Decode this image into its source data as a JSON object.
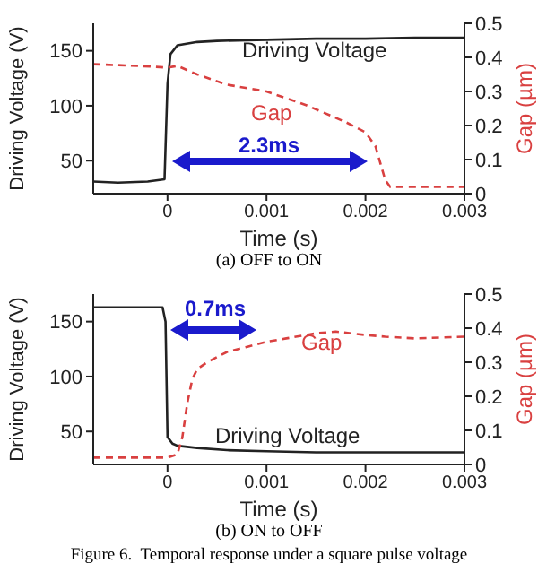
{
  "chart_data": [
    {
      "type": "line",
      "xlabel": "Time (s)",
      "ylabel": "Driving Voltage (V)",
      "y2label": "Gap (µm)",
      "xlim": [
        -0.00075,
        0.003
      ],
      "xticks": [
        0,
        0.001,
        0.002,
        0.003
      ],
      "ylim": [
        20,
        175
      ],
      "yticks": [
        50,
        100,
        150
      ],
      "y2lim": [
        0,
        0.5
      ],
      "y2ticks": [
        0,
        0.1,
        0.2,
        0.3,
        0.4,
        0.5
      ],
      "grid": false,
      "legend": false,
      "marker": "none",
      "annotations": [
        "2.3ms",
        "(a) OFF to ON"
      ],
      "series": [
        {
          "name": "Driving Voltage",
          "color": "#222222",
          "line_style": "solid",
          "x": [
            -0.00075,
            -0.0005,
            -0.0002,
            -3e-05,
            0,
            3e-05,
            0.0001,
            0.0003,
            0.0005,
            0.001,
            0.0015,
            0.002,
            0.0025,
            0.003
          ],
          "values": [
            31,
            30,
            31,
            33,
            120,
            147,
            155,
            158,
            159,
            160,
            161,
            161,
            162,
            162
          ]
        },
        {
          "name": "Gap",
          "color": "#d94040",
          "line_style": "dashed",
          "axis": "y2",
          "x": [
            -0.00075,
            -0.0003,
            0,
            0.0001,
            0.0003,
            0.0006,
            0.001,
            0.0014,
            0.0018,
            0.002,
            0.0021,
            0.00215,
            0.0022,
            0.00225,
            0.0025,
            0.003
          ],
          "values": [
            0.38,
            0.375,
            0.37,
            0.375,
            0.35,
            0.32,
            0.3,
            0.26,
            0.21,
            0.18,
            0.14,
            0.09,
            0.04,
            0.02,
            0.02,
            0.02
          ]
        }
      ]
    },
    {
      "type": "line",
      "xlabel": "Time (s)",
      "ylabel": "Driving Voltage (V)",
      "y2label": "Gap (µm)",
      "xlim": [
        -0.00075,
        0.003
      ],
      "xticks": [
        0,
        0.001,
        0.002,
        0.003
      ],
      "ylim": [
        20,
        175
      ],
      "yticks": [
        50,
        100,
        150
      ],
      "y2lim": [
        0,
        0.5
      ],
      "y2ticks": [
        0,
        0.1,
        0.2,
        0.3,
        0.4,
        0.5
      ],
      "grid": false,
      "legend": false,
      "marker": "none",
      "annotations": [
        "0.7ms",
        "(b) ON to OFF",
        "Figure 6.  Temporal response under a square pulse voltage"
      ],
      "series": [
        {
          "name": "Driving Voltage",
          "color": "#222222",
          "line_style": "solid",
          "x": [
            -0.00075,
            -0.0003,
            -5e-05,
            -2e-05,
            0,
            5e-05,
            0.0001,
            0.0003,
            0.0006,
            0.001,
            0.0015,
            0.002,
            0.0025,
            0.003
          ],
          "values": [
            163,
            163,
            163,
            150,
            45,
            39,
            37,
            35,
            33,
            32,
            31,
            31,
            31,
            31
          ]
        },
        {
          "name": "Gap",
          "color": "#d94040",
          "line_style": "dashed",
          "axis": "y2",
          "x": [
            -0.00075,
            -0.0002,
            0,
            0.0001,
            0.00015,
            0.0002,
            0.00025,
            0.0003,
            0.0004,
            0.0006,
            0.0008,
            0.001,
            0.0012,
            0.0015,
            0.0017,
            0.002,
            0.0022,
            0.0025,
            0.003
          ],
          "values": [
            0.02,
            0.02,
            0.02,
            0.03,
            0.08,
            0.18,
            0.25,
            0.28,
            0.3,
            0.33,
            0.345,
            0.36,
            0.37,
            0.385,
            0.39,
            0.38,
            0.375,
            0.37,
            0.375
          ]
        }
      ]
    }
  ]
}
